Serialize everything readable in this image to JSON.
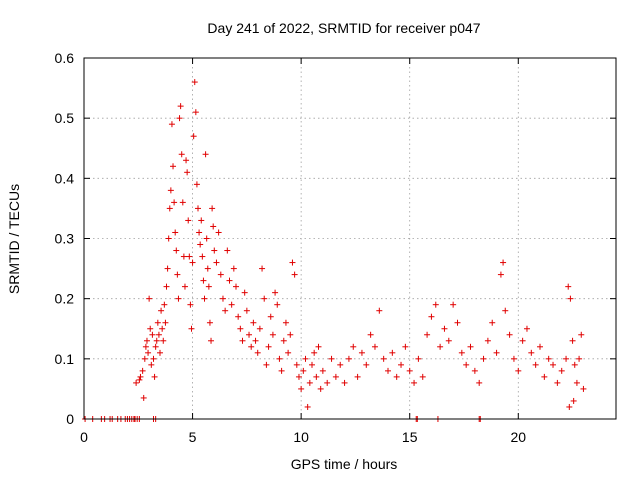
{
  "chart_data": {
    "type": "scatter",
    "title": "Day 241 of 2022, SRMTID for receiver p047",
    "xlabel": "GPS time / hours",
    "ylabel": "SRMTID / TECUs",
    "xlim": [
      0,
      24.5
    ],
    "ylim": [
      0,
      0.6
    ],
    "xticks": [
      0,
      5,
      10,
      15,
      20
    ],
    "yticks": [
      0,
      0.1,
      0.2,
      0.3,
      0.4,
      0.5,
      0.6
    ],
    "xtick_labels": [
      "0",
      "5",
      "10",
      "15",
      "20"
    ],
    "ytick_labels": [
      "0",
      "0.1",
      "0.2",
      "0.3",
      "0.4",
      "0.5",
      "0.6"
    ],
    "grid": true,
    "marker": "+",
    "series": [
      {
        "name": "SRMTID",
        "color": "#e00000",
        "points": [
          [
            0.05,
            0
          ],
          [
            0.4,
            0
          ],
          [
            0.8,
            0
          ],
          [
            0.95,
            0
          ],
          [
            1.2,
            0
          ],
          [
            1.3,
            0
          ],
          [
            1.55,
            0
          ],
          [
            1.7,
            0
          ],
          [
            1.9,
            0
          ],
          [
            2.0,
            0
          ],
          [
            2.1,
            0
          ],
          [
            2.2,
            0
          ],
          [
            2.3,
            0
          ],
          [
            2.35,
            0
          ],
          [
            2.45,
            0
          ],
          [
            2.55,
            0
          ],
          [
            3.2,
            0
          ],
          [
            3.3,
            0
          ],
          [
            15.3,
            0
          ],
          [
            15.35,
            0
          ],
          [
            16.3,
            0
          ],
          [
            18.2,
            0
          ],
          [
            18.25,
            0
          ],
          [
            2.4,
            0.06
          ],
          [
            2.55,
            0.065
          ],
          [
            2.6,
            0.07
          ],
          [
            2.7,
            0.08
          ],
          [
            2.75,
            0.035
          ],
          [
            2.8,
            0.1
          ],
          [
            2.85,
            0.12
          ],
          [
            2.9,
            0.13
          ],
          [
            2.95,
            0.11
          ],
          [
            3.0,
            0.2
          ],
          [
            3.05,
            0.15
          ],
          [
            3.1,
            0.09
          ],
          [
            3.15,
            0.14
          ],
          [
            3.2,
            0.1
          ],
          [
            3.25,
            0.07
          ],
          [
            3.3,
            0.12
          ],
          [
            3.35,
            0.13
          ],
          [
            3.4,
            0.16
          ],
          [
            3.45,
            0.14
          ],
          [
            3.5,
            0.11
          ],
          [
            3.55,
            0.18
          ],
          [
            3.6,
            0.15
          ],
          [
            3.65,
            0.13
          ],
          [
            3.7,
            0.19
          ],
          [
            3.75,
            0.16
          ],
          [
            3.8,
            0.22
          ],
          [
            3.85,
            0.25
          ],
          [
            3.9,
            0.3
          ],
          [
            3.95,
            0.35
          ],
          [
            4.0,
            0.38
          ],
          [
            4.05,
            0.49
          ],
          [
            4.1,
            0.42
          ],
          [
            4.15,
            0.36
          ],
          [
            4.2,
            0.31
          ],
          [
            4.25,
            0.28
          ],
          [
            4.3,
            0.24
          ],
          [
            4.35,
            0.2
          ],
          [
            4.4,
            0.5
          ],
          [
            4.45,
            0.52
          ],
          [
            4.5,
            0.44
          ],
          [
            4.55,
            0.36
          ],
          [
            4.6,
            0.27
          ],
          [
            4.65,
            0.22
          ],
          [
            4.7,
            0.43
          ],
          [
            4.75,
            0.41
          ],
          [
            4.8,
            0.33
          ],
          [
            4.85,
            0.27
          ],
          [
            4.9,
            0.19
          ],
          [
            4.95,
            0.15
          ],
          [
            5.0,
            0.26
          ],
          [
            5.05,
            0.47
          ],
          [
            5.1,
            0.56
          ],
          [
            5.15,
            0.51
          ],
          [
            5.2,
            0.39
          ],
          [
            5.25,
            0.35
          ],
          [
            5.3,
            0.31
          ],
          [
            5.35,
            0.29
          ],
          [
            5.4,
            0.33
          ],
          [
            5.45,
            0.27
          ],
          [
            5.5,
            0.23
          ],
          [
            5.55,
            0.2
          ],
          [
            5.6,
            0.44
          ],
          [
            5.65,
            0.3
          ],
          [
            5.7,
            0.25
          ],
          [
            5.75,
            0.22
          ],
          [
            5.8,
            0.16
          ],
          [
            5.85,
            0.13
          ],
          [
            5.9,
            0.35
          ],
          [
            5.95,
            0.32
          ],
          [
            6.0,
            0.28
          ],
          [
            6.1,
            0.26
          ],
          [
            6.2,
            0.31
          ],
          [
            6.3,
            0.24
          ],
          [
            6.4,
            0.2
          ],
          [
            6.5,
            0.18
          ],
          [
            6.6,
            0.28
          ],
          [
            6.7,
            0.23
          ],
          [
            6.8,
            0.19
          ],
          [
            6.9,
            0.25
          ],
          [
            7.0,
            0.22
          ],
          [
            7.1,
            0.17
          ],
          [
            7.2,
            0.15
          ],
          [
            7.3,
            0.13
          ],
          [
            7.4,
            0.21
          ],
          [
            7.5,
            0.18
          ],
          [
            7.6,
            0.14
          ],
          [
            7.7,
            0.12
          ],
          [
            7.8,
            0.16
          ],
          [
            7.9,
            0.13
          ],
          [
            8.0,
            0.11
          ],
          [
            8.1,
            0.15
          ],
          [
            8.2,
            0.25
          ],
          [
            8.3,
            0.2
          ],
          [
            8.4,
            0.09
          ],
          [
            8.5,
            0.12
          ],
          [
            8.6,
            0.17
          ],
          [
            8.7,
            0.14
          ],
          [
            8.8,
            0.21
          ],
          [
            8.9,
            0.19
          ],
          [
            9.0,
            0.1
          ],
          [
            9.1,
            0.08
          ],
          [
            9.2,
            0.13
          ],
          [
            9.3,
            0.16
          ],
          [
            9.4,
            0.11
          ],
          [
            9.5,
            0.14
          ],
          [
            9.6,
            0.26
          ],
          [
            9.7,
            0.24
          ],
          [
            9.8,
            0.09
          ],
          [
            9.9,
            0.07
          ],
          [
            10.0,
            0.05
          ],
          [
            10.1,
            0.08
          ],
          [
            10.2,
            0.1
          ],
          [
            10.3,
            0.02
          ],
          [
            10.4,
            0.06
          ],
          [
            10.5,
            0.09
          ],
          [
            10.6,
            0.11
          ],
          [
            10.7,
            0.07
          ],
          [
            10.8,
            0.12
          ],
          [
            10.9,
            0.05
          ],
          [
            11.0,
            0.08
          ],
          [
            11.2,
            0.06
          ],
          [
            11.4,
            0.1
          ],
          [
            11.6,
            0.07
          ],
          [
            11.8,
            0.09
          ],
          [
            12.0,
            0.06
          ],
          [
            12.2,
            0.1
          ],
          [
            12.4,
            0.12
          ],
          [
            12.6,
            0.07
          ],
          [
            12.8,
            0.11
          ],
          [
            13.0,
            0.09
          ],
          [
            13.2,
            0.14
          ],
          [
            13.4,
            0.12
          ],
          [
            13.6,
            0.18
          ],
          [
            13.8,
            0.1
          ],
          [
            14.0,
            0.08
          ],
          [
            14.2,
            0.11
          ],
          [
            14.4,
            0.07
          ],
          [
            14.6,
            0.09
          ],
          [
            14.8,
            0.12
          ],
          [
            15.0,
            0.08
          ],
          [
            15.2,
            0.06
          ],
          [
            15.4,
            0.1
          ],
          [
            15.6,
            0.07
          ],
          [
            15.8,
            0.14
          ],
          [
            16.0,
            0.17
          ],
          [
            16.2,
            0.19
          ],
          [
            16.4,
            0.12
          ],
          [
            16.6,
            0.15
          ],
          [
            16.8,
            0.13
          ],
          [
            17.0,
            0.19
          ],
          [
            17.2,
            0.16
          ],
          [
            17.4,
            0.11
          ],
          [
            17.6,
            0.09
          ],
          [
            17.8,
            0.12
          ],
          [
            18.0,
            0.08
          ],
          [
            18.2,
            0.06
          ],
          [
            18.4,
            0.1
          ],
          [
            18.6,
            0.13
          ],
          [
            18.8,
            0.16
          ],
          [
            19.0,
            0.11
          ],
          [
            19.2,
            0.24
          ],
          [
            19.3,
            0.26
          ],
          [
            19.4,
            0.18
          ],
          [
            19.6,
            0.14
          ],
          [
            19.8,
            0.1
          ],
          [
            20.0,
            0.08
          ],
          [
            20.2,
            0.13
          ],
          [
            20.4,
            0.15
          ],
          [
            20.6,
            0.11
          ],
          [
            20.8,
            0.09
          ],
          [
            21.0,
            0.12
          ],
          [
            21.2,
            0.07
          ],
          [
            21.4,
            0.1
          ],
          [
            21.6,
            0.09
          ],
          [
            21.8,
            0.06
          ],
          [
            22.0,
            0.08
          ],
          [
            22.2,
            0.1
          ],
          [
            22.3,
            0.22
          ],
          [
            22.4,
            0.2
          ],
          [
            22.5,
            0.13
          ],
          [
            22.6,
            0.09
          ],
          [
            22.7,
            0.06
          ],
          [
            22.8,
            0.1
          ],
          [
            22.9,
            0.14
          ],
          [
            23.0,
            0.05
          ],
          [
            22.35,
            0.02
          ],
          [
            22.55,
            0.03
          ]
        ]
      }
    ]
  }
}
